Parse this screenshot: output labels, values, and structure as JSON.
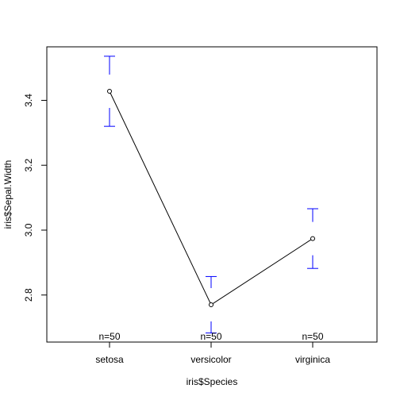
{
  "chart_data": {
    "type": "line",
    "title": "",
    "xlabel": "iris$Species",
    "ylabel": "iris$Sepal.Width",
    "categories": [
      "setosa",
      "versicolor",
      "virginica"
    ],
    "series": [
      {
        "values": [
          3.428,
          2.77,
          2.974
        ],
        "error_low": [
          3.32,
          2.683,
          2.882
        ],
        "error_high": [
          3.536,
          2.857,
          3.066
        ],
        "counts": [
          "n=50",
          "n=50",
          "n=50"
        ]
      }
    ],
    "ylim": [
      2.655,
      3.565
    ],
    "yticks": [
      2.8,
      3.0,
      3.2,
      3.4
    ],
    "ytick_labels": [
      "2.8",
      "3.0",
      "3.2",
      "3.4"
    ],
    "grid": false,
    "colors": {
      "line": "#000000",
      "error_bars": "#0000ff",
      "points": "#000000"
    }
  }
}
